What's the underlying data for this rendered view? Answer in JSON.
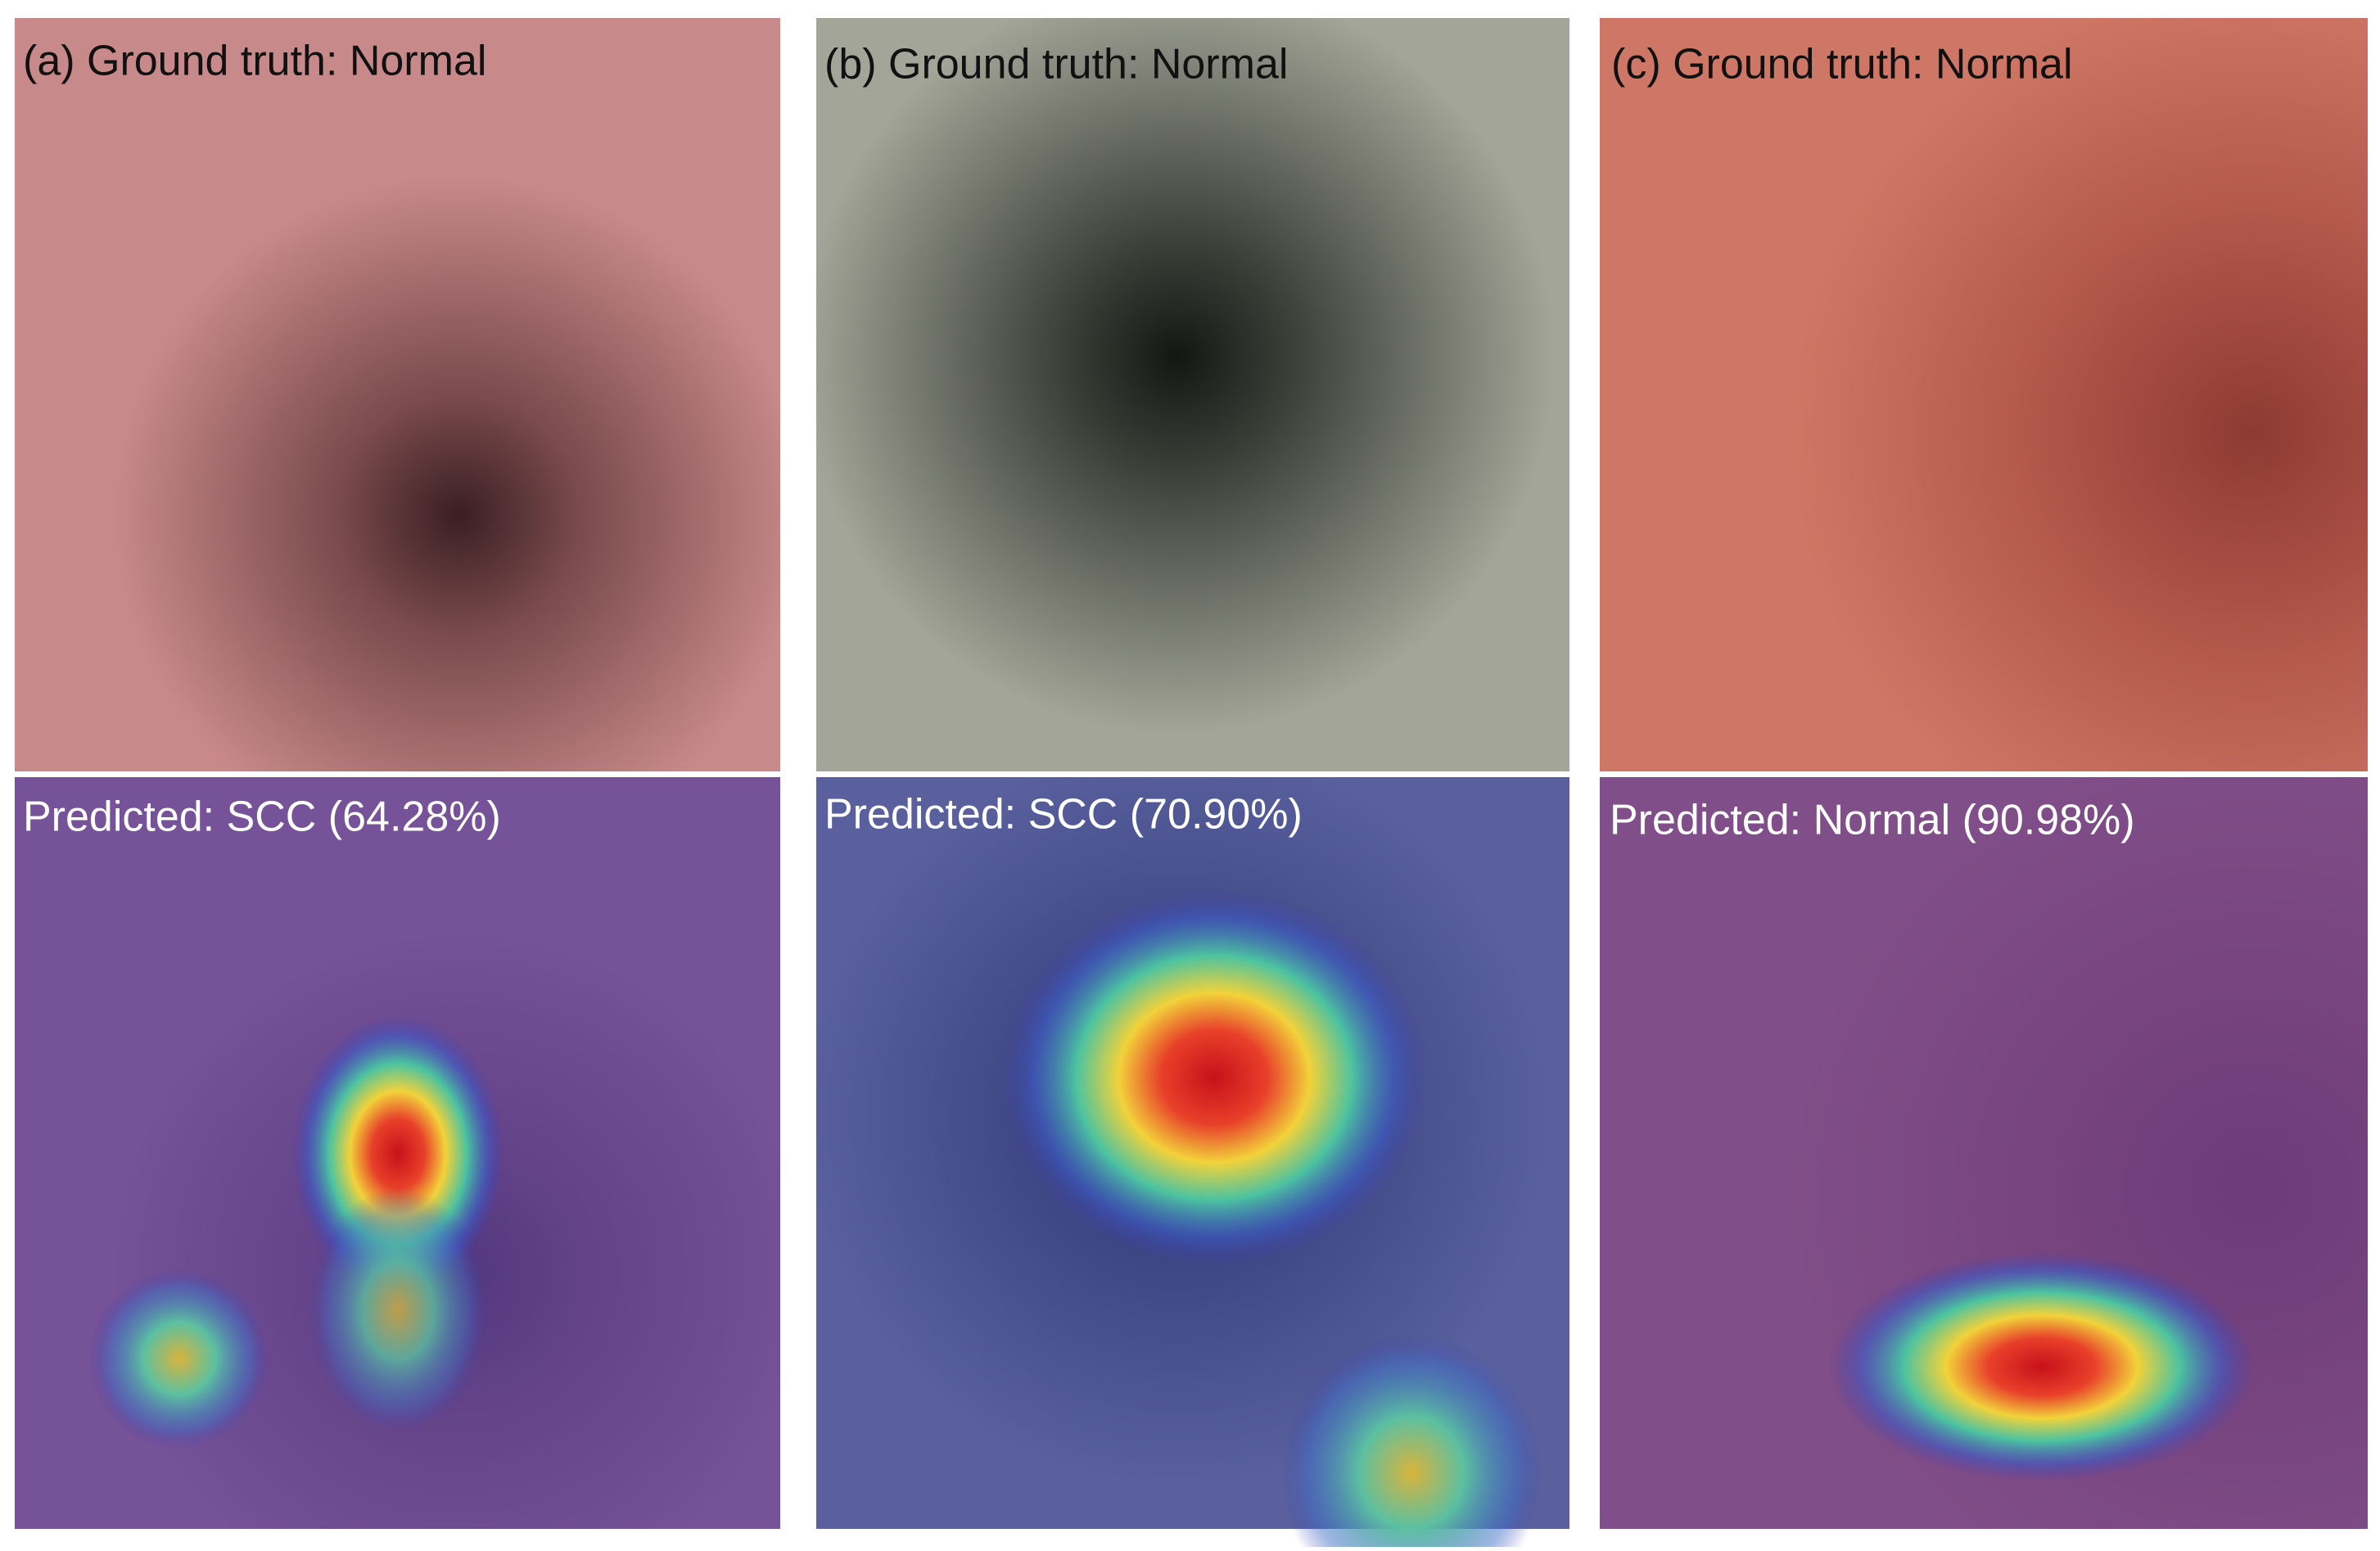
{
  "panels": [
    {
      "ground_truth": "(a) Ground truth: Normal",
      "prediction": "Predicted: SCC (64.28%)"
    },
    {
      "ground_truth": "(b) Ground truth: Normal",
      "prediction": "Predicted: SCC (70.90%)"
    },
    {
      "ground_truth": "(c) Ground truth: Normal",
      "prediction": "Predicted: Normal (90.98%)"
    }
  ]
}
